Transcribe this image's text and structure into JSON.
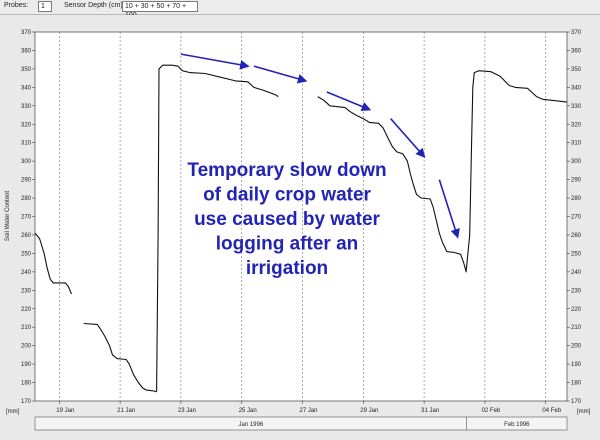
{
  "toolbar": {
    "probes_label": "Probes:",
    "probes_value": "1",
    "depth_label": "Sensor Depth (cm):",
    "depth_value": "10 + 30 + 50 + 70 + 100"
  },
  "colors": {
    "line": "#111111",
    "annotation": "#2323b5",
    "grid": "#777777"
  },
  "chart_data": {
    "type": "line",
    "ylabel": "Soil Water Content",
    "y_unit_left": "[mm]",
    "y_unit_right": "[mm]",
    "ylim": [
      170,
      370
    ],
    "yticks": [
      170,
      180,
      190,
      200,
      210,
      220,
      230,
      240,
      250,
      260,
      270,
      280,
      290,
      300,
      310,
      320,
      330,
      340,
      350,
      360,
      370
    ],
    "xlim_days": [
      0,
      17.5
    ],
    "xticks": [
      {
        "day": 0.8,
        "label": "19 Jan"
      },
      {
        "day": 2.8,
        "label": "21 Jan"
      },
      {
        "day": 4.8,
        "label": "23 Jan"
      },
      {
        "day": 6.8,
        "label": "25 Jan"
      },
      {
        "day": 8.8,
        "label": "27 Jan"
      },
      {
        "day": 10.8,
        "label": "29 Jan"
      },
      {
        "day": 12.8,
        "label": "31 Jan"
      },
      {
        "day": 14.8,
        "label": "02 Feb"
      },
      {
        "day": 16.8,
        "label": "04 Feb"
      }
    ],
    "vlines_days": [
      0.8,
      2.8,
      4.8,
      6.8,
      8.8,
      10.8,
      12.8,
      14.8,
      16.8
    ],
    "month_labels": [
      {
        "label": "Jan 1996",
        "from": 0,
        "to": 14.2
      },
      {
        "label": "Feb 1996",
        "from": 14.2,
        "to": 17.5
      }
    ],
    "series": [
      {
        "segments": [
          [
            [
              0,
              261
            ],
            [
              0.15,
              258
            ],
            [
              0.3,
              250
            ],
            [
              0.4,
              242
            ],
            [
              0.5,
              236
            ],
            [
              0.6,
              234
            ],
            [
              1.0,
              234
            ],
            [
              1.1,
              232
            ],
            [
              1.2,
              228
            ]
          ],
          [
            [
              1.6,
              212
            ],
            [
              2.05,
              211.5
            ],
            [
              2.15,
              209
            ],
            [
              2.3,
              205
            ],
            [
              2.45,
              200
            ],
            [
              2.55,
              195
            ],
            [
              2.7,
              193
            ],
            [
              3.0,
              192.5
            ],
            [
              3.1,
              190
            ],
            [
              3.25,
              184
            ],
            [
              3.4,
              180
            ],
            [
              3.55,
              177
            ],
            [
              3.65,
              176
            ],
            [
              3.9,
              175.5
            ],
            [
              4.0,
              175
            ]
          ],
          [
            [
              4.0,
              175
            ],
            [
              4.05,
              260
            ],
            [
              4.08,
              350
            ],
            [
              4.2,
              352
            ],
            [
              4.5,
              352
            ],
            [
              4.7,
              351.5
            ],
            [
              4.85,
              349
            ],
            [
              5.1,
              348
            ],
            [
              5.6,
              347.5
            ],
            [
              6.1,
              345.5
            ],
            [
              6.6,
              343.5
            ],
            [
              7.0,
              343
            ],
            [
              7.2,
              340
            ],
            [
              7.5,
              338.5
            ],
            [
              7.9,
              336
            ],
            [
              8.0,
              335
            ]
          ],
          [
            [
              9.3,
              335
            ],
            [
              9.5,
              333
            ],
            [
              9.7,
              330
            ],
            [
              10.2,
              329
            ],
            [
              10.35,
              327
            ],
            [
              10.55,
              325
            ],
            [
              10.8,
              323
            ],
            [
              11.0,
              321
            ],
            [
              11.3,
              320.5
            ],
            [
              11.45,
              318
            ],
            [
              11.6,
              313
            ],
            [
              11.75,
              308
            ],
            [
              11.9,
              305
            ],
            [
              12.1,
              304
            ],
            [
              12.25,
              300
            ],
            [
              12.35,
              293
            ],
            [
              12.45,
              287
            ],
            [
              12.55,
              282
            ],
            [
              12.7,
              280
            ],
            [
              13.0,
              279.5
            ],
            [
              13.1,
              275
            ],
            [
              13.2,
              268
            ],
            [
              13.3,
              261
            ],
            [
              13.4,
              256
            ],
            [
              13.55,
              251
            ],
            [
              13.8,
              250.5
            ],
            [
              14.0,
              249.5
            ],
            [
              14.1,
              245
            ],
            [
              14.15,
              242
            ],
            [
              14.18,
              240
            ],
            [
              14.3,
              260
            ],
            [
              14.35,
              300
            ],
            [
              14.4,
              340
            ],
            [
              14.45,
              348
            ],
            [
              14.6,
              349
            ],
            [
              15.0,
              348.5
            ],
            [
              15.3,
              346
            ],
            [
              15.6,
              341
            ],
            [
              15.8,
              340
            ],
            [
              16.2,
              339.5
            ],
            [
              16.5,
              335
            ],
            [
              16.7,
              333.5
            ],
            [
              17.0,
              333
            ],
            [
              17.5,
              332
            ]
          ]
        ]
      }
    ],
    "annotation_lines": [
      "Temporary slow down",
      "of daily crop water",
      "use caused by water",
      "logging after an",
      "irrigation"
    ],
    "arrows": [
      [
        [
          4.8,
          358
        ],
        [
          7.0,
          351.5
        ]
      ],
      [
        [
          7.2,
          351.5
        ],
        [
          8.9,
          343.5
        ]
      ],
      [
        [
          9.6,
          337.5
        ],
        [
          11.0,
          328
        ]
      ],
      [
        [
          11.7,
          323
        ],
        [
          12.8,
          302.5
        ]
      ],
      [
        [
          13.3,
          290
        ],
        [
          13.9,
          259
        ]
      ]
    ]
  }
}
